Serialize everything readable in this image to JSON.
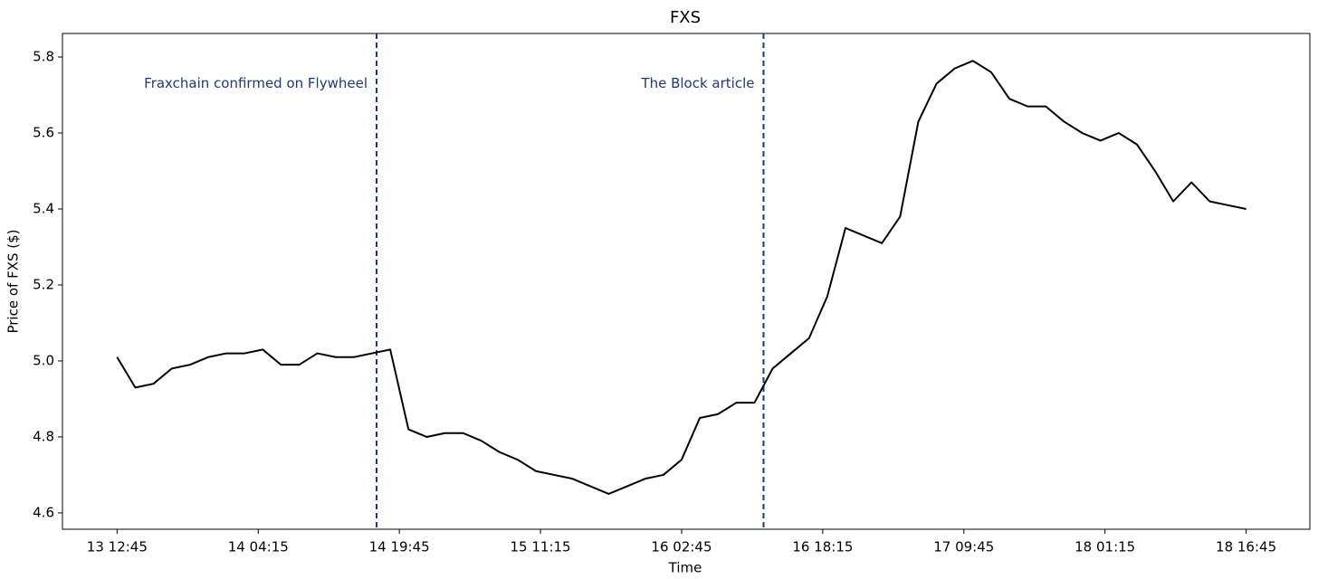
{
  "chart_data": {
    "type": "line",
    "title": "FXS",
    "xlabel": "Time",
    "ylabel": "Price of FXS ($)",
    "x": [
      "13 12:45",
      "13 14:45",
      "13 16:45",
      "13 18:45",
      "13 20:45",
      "13 22:45",
      "14 00:45",
      "14 02:45",
      "14 04:45",
      "14 06:45",
      "14 08:45",
      "14 10:45",
      "14 12:45",
      "14 14:45",
      "14 16:45",
      "14 18:45",
      "14 20:45",
      "14 22:45",
      "15 00:45",
      "15 02:45",
      "15 04:45",
      "15 06:45",
      "15 08:45",
      "15 10:45",
      "15 12:45",
      "15 14:45",
      "15 16:45",
      "15 18:45",
      "15 20:45",
      "15 22:45",
      "16 00:45",
      "16 02:45",
      "16 04:45",
      "16 06:45",
      "16 08:45",
      "16 10:45",
      "16 12:45",
      "16 14:45",
      "16 16:45",
      "16 18:45",
      "16 20:45",
      "16 22:45",
      "17 00:45",
      "17 02:45",
      "17 04:45",
      "17 06:45",
      "17 08:45",
      "17 10:45",
      "17 12:45",
      "17 14:45",
      "17 16:45",
      "17 18:45",
      "17 20:45",
      "17 22:45",
      "18 00:45",
      "18 02:45",
      "18 04:45",
      "18 06:45",
      "18 08:45",
      "18 10:45",
      "18 12:45",
      "18 14:45",
      "18 16:45"
    ],
    "values": [
      5.01,
      4.93,
      4.94,
      4.98,
      4.99,
      5.01,
      5.02,
      5.02,
      5.03,
      4.99,
      4.99,
      5.02,
      5.01,
      5.01,
      5.02,
      5.03,
      4.82,
      4.8,
      4.81,
      4.81,
      4.79,
      4.76,
      4.74,
      4.71,
      4.7,
      4.69,
      4.67,
      4.65,
      4.67,
      4.69,
      4.7,
      4.74,
      4.85,
      4.86,
      4.89,
      4.89,
      4.98,
      5.02,
      5.06,
      5.17,
      5.35,
      5.33,
      5.31,
      5.38,
      5.63,
      5.73,
      5.77,
      5.79,
      5.76,
      5.69,
      5.67,
      5.67,
      5.63,
      5.6,
      5.58,
      5.6,
      5.57,
      5.5,
      5.42,
      5.47,
      5.42,
      5.41,
      5.4
    ],
    "color": "#000000",
    "xlim": [
      "13 06:45",
      "18 23:45"
    ],
    "xticks": [
      "13 12:45",
      "14 04:15",
      "14 19:45",
      "15 11:15",
      "16 02:45",
      "16 18:15",
      "17 09:45",
      "18 01:15",
      "18 16:45"
    ],
    "ylim": [
      4.557,
      5.862
    ],
    "yticks": [
      4.6,
      4.8,
      {
        "value": 5,
        "label": "5.0"
      },
      5.2,
      5.4,
      5.6,
      5.8
    ],
    "annotations": [
      {
        "x": "14 17:15",
        "text": "Fraxchain confirmed on Flywheel",
        "y": 5.73,
        "color": "#1f3a7a"
      },
      {
        "x": "16 11:45",
        "text": "The Block article",
        "y": 5.73,
        "color": "#1f3a7a"
      }
    ]
  }
}
